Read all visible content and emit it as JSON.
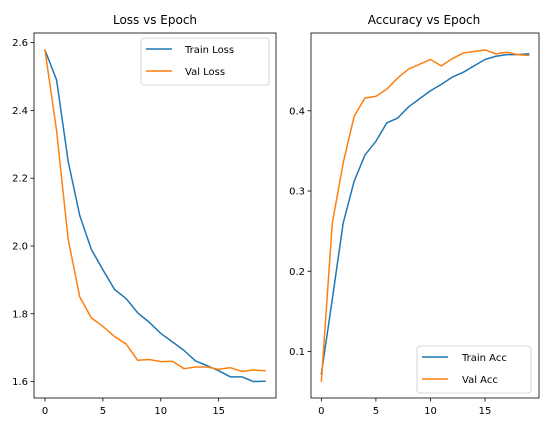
{
  "chart_data": [
    {
      "type": "line",
      "title": "Loss vs Epoch",
      "xlabel": "",
      "ylabel": "",
      "xlim": [
        -0.95,
        19.95
      ],
      "ylim": [
        1.5515,
        2.6285
      ],
      "xticks": [
        0,
        5,
        10,
        15
      ],
      "yticks": [
        1.6,
        1.8,
        2.0,
        2.2,
        2.4,
        2.6
      ],
      "ytick_labels": [
        "1.6",
        "1.8",
        "2.0",
        "2.2",
        "2.4",
        "2.6"
      ],
      "legend_position": "top-right",
      "grid": false,
      "x": [
        0,
        1,
        2,
        3,
        4,
        5,
        6,
        7,
        8,
        9,
        10,
        11,
        12,
        13,
        14,
        15,
        16,
        17,
        18,
        19
      ],
      "series": [
        {
          "name": "Train Loss",
          "color": "#1f77b4",
          "values": [
            2.578,
            2.49,
            2.25,
            2.09,
            1.99,
            1.93,
            1.872,
            1.845,
            1.803,
            1.775,
            1.742,
            1.717,
            1.692,
            1.661,
            1.647,
            1.632,
            1.614,
            1.614,
            1.6,
            1.601
          ]
        },
        {
          "name": "Val Loss",
          "color": "#ff7f0e",
          "values": [
            2.578,
            2.34,
            2.02,
            1.85,
            1.788,
            1.763,
            1.733,
            1.711,
            1.663,
            1.665,
            1.659,
            1.66,
            1.638,
            1.643,
            1.643,
            1.636,
            1.641,
            1.63,
            1.634,
            1.632
          ]
        }
      ]
    },
    {
      "type": "line",
      "title": "Accuracy vs Epoch",
      "xlabel": "",
      "ylabel": "",
      "xlim": [
        -0.95,
        19.95
      ],
      "ylim": [
        0.042,
        0.497
      ],
      "xticks": [
        0,
        5,
        10,
        15
      ],
      "yticks": [
        0.1,
        0.2,
        0.3,
        0.4
      ],
      "ytick_labels": [
        "0.1",
        "0.2",
        "0.3",
        "0.4"
      ],
      "legend_position": "bottom-right",
      "grid": false,
      "x": [
        0,
        1,
        2,
        3,
        4,
        5,
        6,
        7,
        8,
        9,
        10,
        11,
        12,
        13,
        14,
        15,
        16,
        17,
        18,
        19
      ],
      "series": [
        {
          "name": "Train Acc",
          "color": "#1f77b4",
          "values": [
            0.072,
            0.165,
            0.26,
            0.312,
            0.345,
            0.362,
            0.385,
            0.391,
            0.405,
            0.415,
            0.425,
            0.433,
            0.442,
            0.448,
            0.456,
            0.464,
            0.468,
            0.47,
            0.47,
            0.471
          ]
        },
        {
          "name": "Val Acc",
          "color": "#ff7f0e",
          "values": [
            0.063,
            0.26,
            0.335,
            0.393,
            0.416,
            0.418,
            0.427,
            0.441,
            0.452,
            0.458,
            0.464,
            0.456,
            0.465,
            0.472,
            0.474,
            0.476,
            0.471,
            0.473,
            0.47,
            0.469
          ]
        }
      ]
    }
  ]
}
